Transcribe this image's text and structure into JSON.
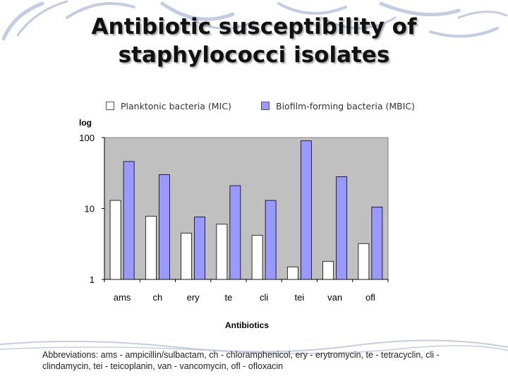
{
  "slide": {
    "title_line1": "Antibiotic susceptibility of",
    "title_line2": "staphylococci isolates",
    "abbreviations": "Abbreviations: ams - ampicillin/sulbactam, ch - chloramphenicol, ery - erytromycin, te - tetracyclin, cli - clindamycin, tei - teicoplanin, van - vancomycin, ofl - ofloxacin"
  },
  "chart_data": {
    "type": "bar",
    "title": "",
    "xlabel": "Antibiotics",
    "ylabel": "log",
    "yscale": "log",
    "ylim": [
      1,
      100
    ],
    "yticks": [
      1,
      10,
      100
    ],
    "ytick_labels": [
      "1",
      "10",
      "100"
    ],
    "categories": [
      "ams",
      "ch",
      "ery",
      "te",
      "cli",
      "tei",
      "van",
      "ofl"
    ],
    "series": [
      {
        "name": "Planktonic bacteria (MIC)",
        "color": "#ffffff",
        "values": [
          13,
          7.8,
          4.5,
          6,
          4.2,
          1.5,
          1.8,
          3.2
        ]
      },
      {
        "name": "Biofilm-forming bacteria (MBIC)",
        "color": "#9999ff",
        "values": [
          46,
          30,
          7.6,
          21,
          13,
          90,
          28,
          10.5
        ]
      }
    ],
    "legend_position": "top",
    "grid": false,
    "plot_background": "#c0c0c0"
  }
}
